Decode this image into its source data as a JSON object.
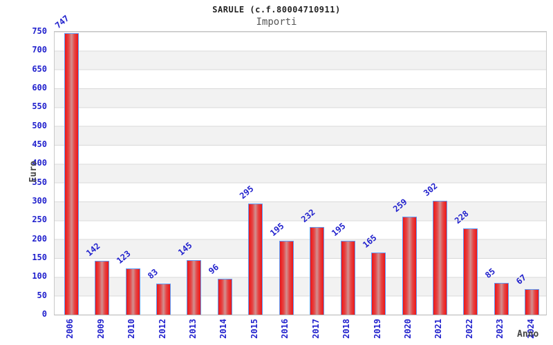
{
  "chart_data": {
    "type": "bar",
    "title": "SARULE (c.f.80004710911)",
    "subtitle": "Importi",
    "xlabel": "Anno",
    "ylabel": "Euro",
    "categories": [
      "2006",
      "2009",
      "2010",
      "2012",
      "2013",
      "2014",
      "2015",
      "2016",
      "2017",
      "2018",
      "2019",
      "2020",
      "2021",
      "2022",
      "2023",
      "2024"
    ],
    "values": [
      747,
      142,
      123,
      83,
      145,
      96,
      295,
      195,
      232,
      195,
      165,
      259,
      302,
      228,
      85,
      67
    ],
    "ylim": [
      0,
      750
    ],
    "ytick_step": 50,
    "grid": true,
    "legend_position": "none",
    "colors": {
      "background": "#ffffff",
      "title": "#222222",
      "subtitle": "#555555",
      "axis_title": "#444444",
      "tick_label": "#2121cd",
      "value_label": "#2121cd",
      "bar_edge": "#ee1616",
      "bar_mid": "#d29090",
      "bar_border": "#5e9cf7",
      "band_gray": "#f2f2f2",
      "gridline": "#d9d9d9",
      "plot_border": "#c9c9c9"
    }
  }
}
